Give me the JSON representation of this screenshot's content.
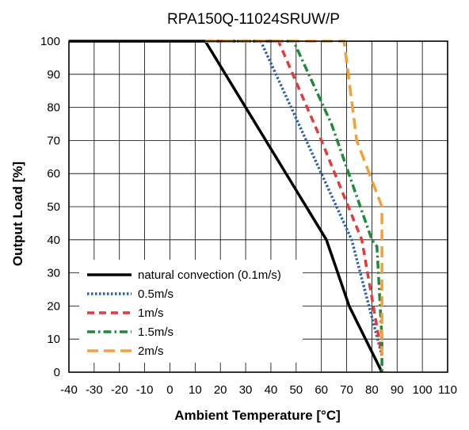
{
  "chart_data": {
    "type": "line",
    "title": "RPA150Q-11024SRUW/P",
    "xlabel": "Ambient Temperature [°C]",
    "ylabel": "Output Load [%]",
    "xlim": [
      -40,
      110
    ],
    "ylim": [
      0,
      100
    ],
    "xticks": [
      -40,
      -30,
      -20,
      -10,
      0,
      10,
      20,
      30,
      40,
      50,
      60,
      70,
      80,
      90,
      100,
      110
    ],
    "yticks": [
      0,
      10,
      20,
      30,
      40,
      50,
      60,
      70,
      80,
      90,
      100
    ],
    "grid": true,
    "legend_position": "lower-left",
    "series": [
      {
        "name": "natural convection (0.1m/s)",
        "color": "#000000",
        "style": "solid",
        "points": [
          [
            -40,
            100
          ],
          [
            14,
            100
          ],
          [
            62,
            40
          ],
          [
            71,
            20
          ],
          [
            84,
            0
          ]
        ]
      },
      {
        "name": "0.5m/s",
        "color": "#2a5fb0",
        "style": "dotted",
        "points": [
          [
            14,
            100
          ],
          [
            36,
            100
          ],
          [
            60,
            60
          ],
          [
            72,
            40
          ],
          [
            84,
            5
          ]
        ]
      },
      {
        "name": "1m/s",
        "color": "#e23b3b",
        "style": "dashed",
        "points": [
          [
            14,
            100
          ],
          [
            43,
            100
          ],
          [
            60,
            70
          ],
          [
            76,
            40
          ],
          [
            84,
            5
          ]
        ]
      },
      {
        "name": "1.5m/s",
        "color": "#1e8a3c",
        "style": "dashdot",
        "points": [
          [
            14,
            100
          ],
          [
            49,
            100
          ],
          [
            64,
            75
          ],
          [
            80,
            40
          ],
          [
            82,
            38
          ],
          [
            84,
            10
          ],
          [
            84,
            0
          ]
        ]
      },
      {
        "name": "2m/s",
        "color": "#f3a03c",
        "style": "longdash",
        "points": [
          [
            14,
            100
          ],
          [
            69,
            100
          ],
          [
            74,
            70
          ],
          [
            84,
            50
          ],
          [
            84,
            5
          ]
        ]
      }
    ]
  }
}
